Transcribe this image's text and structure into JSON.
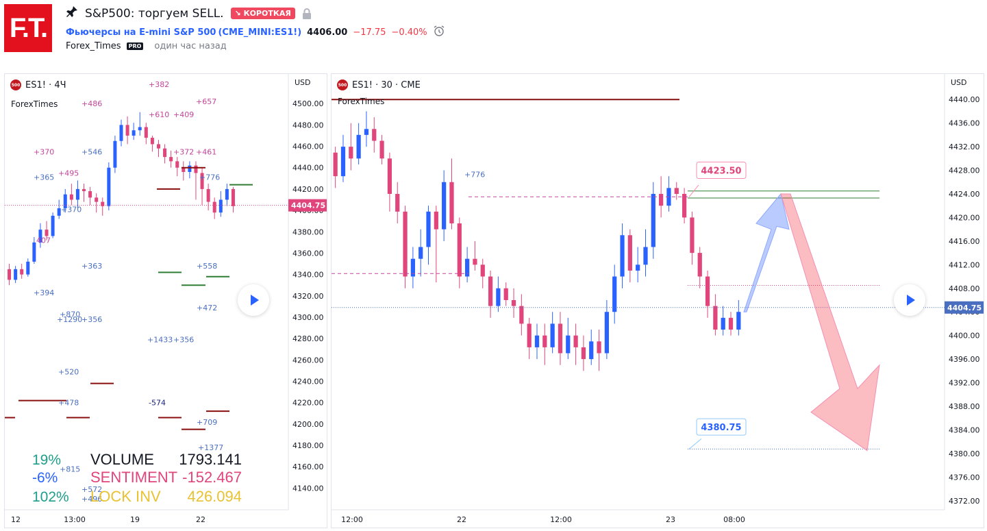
{
  "header": {
    "logo_text": "F.T.",
    "title": "S&P500: торгуем SELL.",
    "pin_icon": "pin-icon",
    "direction_badge": "↘ КОРОТКАЯ",
    "instrument": "Фьючерсы на E-mini S&P 500",
    "ticker": "(CME_MINI:ES1!)",
    "price": "4406.00",
    "change": "−17.75",
    "change_pct": "−0.40%",
    "author": "Forex_Times",
    "author_badge": "PRO",
    "published": "один час назад"
  },
  "colors": {
    "up": "#2962ff",
    "down": "#e0457b",
    "accent": "#2962ff",
    "short": "#f0485f"
  },
  "chart_data": [
    {
      "type": "candlestick",
      "symbol": "ES1! · 4Ч",
      "indicator_name": "ForexTimes",
      "currency": "USD",
      "last_price_label": "4404.75",
      "ylim": [
        4130,
        4520
      ],
      "y_ticks": [
        "4500.00",
        "4480.00",
        "4460.00",
        "4440.00",
        "4420.00",
        "4400.00",
        "4380.00",
        "4360.00",
        "4340.00",
        "4320.00",
        "4300.00",
        "4280.00",
        "4260.00",
        "4240.00",
        "4220.00",
        "4200.00",
        "4180.00",
        "4160.00",
        "4140.00"
      ],
      "x_ticks": [
        "12",
        "13:00",
        "19",
        "22"
      ],
      "candles": [
        [
          4345,
          4335,
          4350,
          4330
        ],
        [
          4335,
          4345,
          4348,
          4332
        ],
        [
          4345,
          4340,
          4350,
          4336
        ],
        [
          4340,
          4352,
          4355,
          4338
        ],
        [
          4352,
          4370,
          4375,
          4350
        ],
        [
          4370,
          4382,
          4388,
          4365
        ],
        [
          4382,
          4376,
          4390,
          4372
        ],
        [
          4376,
          4395,
          4398,
          4374
        ],
        [
          4395,
          4402,
          4410,
          4392
        ],
        [
          4402,
          4415,
          4420,
          4398
        ],
        [
          4415,
          4410,
          4425,
          4405
        ],
        [
          4410,
          4420,
          4428,
          4402
        ],
        [
          4420,
          4418,
          4425,
          4408
        ],
        [
          4418,
          4412,
          4422,
          4405
        ],
        [
          4412,
          4408,
          4416,
          4398
        ],
        [
          4408,
          4404,
          4412,
          4395
        ],
        [
          4404,
          4440,
          4445,
          4400
        ],
        [
          4440,
          4465,
          4470,
          4435
        ],
        [
          4465,
          4480,
          4485,
          4460
        ],
        [
          4480,
          4470,
          4488,
          4462
        ],
        [
          4470,
          4475,
          4482,
          4466
        ],
        [
          4475,
          4478,
          4492,
          4470
        ],
        [
          4478,
          4468,
          4482,
          4462
        ],
        [
          4468,
          4462,
          4470,
          4455
        ],
        [
          4462,
          4458,
          4466,
          4450
        ],
        [
          4458,
          4450,
          4462,
          4444
        ],
        [
          4450,
          4446,
          4456,
          4440
        ],
        [
          4446,
          4440,
          4450,
          4432
        ],
        [
          4440,
          4436,
          4446,
          4428
        ],
        [
          4436,
          4442,
          4446,
          4430
        ],
        [
          4442,
          4435,
          4446,
          4410
        ],
        [
          4435,
          4420,
          4440,
          4405
        ],
        [
          4420,
          4408,
          4425,
          4400
        ],
        [
          4408,
          4398,
          4412,
          4392
        ],
        [
          4398,
          4410,
          4418,
          4394
        ],
        [
          4410,
          4420,
          4425,
          4404
        ],
        [
          4420,
          4404,
          4422,
          4398
        ]
      ],
      "labels": [
        {
          "text": "+382",
          "x": 0,
          "y": 4518,
          "c": "#c2459a"
        },
        {
          "text": "+486",
          "x": 0,
          "y": 4500,
          "c": "#c2459a"
        },
        {
          "text": "+657",
          "x": 0,
          "y": 4502,
          "c": "#c2459a"
        },
        {
          "text": "+610",
          "x": 0,
          "y": 4490,
          "c": "#c2459a"
        },
        {
          "text": "+409",
          "x": 0,
          "y": 4490,
          "c": "#c2459a"
        },
        {
          "text": "+370",
          "x": 0,
          "y": 4455,
          "c": "#c2459a"
        },
        {
          "text": "+546",
          "x": 0,
          "y": 4455,
          "c": "#4a6fc0"
        },
        {
          "text": "+372",
          "x": 0,
          "y": 4455,
          "c": "#c2459a"
        },
        {
          "text": "+461",
          "x": 0,
          "y": 4455,
          "c": "#c2459a"
        },
        {
          "text": "+495",
          "x": 0,
          "y": 4435,
          "c": "#c2459a"
        },
        {
          "text": "+365",
          "x": 0,
          "y": 4431,
          "c": "#4a6fc0"
        },
        {
          "text": "+776",
          "x": 0,
          "y": 4431,
          "c": "#4a6fc0"
        },
        {
          "text": "+370",
          "x": 0,
          "y": 4401,
          "c": "#4a6fc0"
        },
        {
          "text": "407",
          "x": 0,
          "y": 4372,
          "c": "#c2459a"
        },
        {
          "text": "+363",
          "x": 0,
          "y": 4348,
          "c": "#4a6fc0"
        },
        {
          "text": "+558",
          "x": 0,
          "y": 4348,
          "c": "#4a6fc0"
        },
        {
          "text": "+394",
          "x": 0,
          "y": 4323,
          "c": "#4a6fc0"
        },
        {
          "text": "+472",
          "x": 0,
          "y": 4309,
          "c": "#4a6fc0"
        },
        {
          "text": "+870",
          "x": 0,
          "y": 4303,
          "c": "#4a6fc0"
        },
        {
          "text": "+1290",
          "x": 0,
          "y": 4298,
          "c": "#4a6fc0"
        },
        {
          "text": "+356",
          "x": 0,
          "y": 4298,
          "c": "#4a6fc0"
        },
        {
          "text": "+1433",
          "x": 0,
          "y": 4279,
          "c": "#4a6fc0"
        },
        {
          "text": "+356",
          "x": 0,
          "y": 4279,
          "c": "#4a6fc0"
        },
        {
          "text": "+520",
          "x": 0,
          "y": 4249,
          "c": "#4a6fc0"
        },
        {
          "text": "+478",
          "x": 0,
          "y": 4220,
          "c": "#4a6fc0"
        },
        {
          "text": "-574",
          "x": 0,
          "y": 4220,
          "c": "#1a237e"
        },
        {
          "text": "+709",
          "x": 0,
          "y": 4202,
          "c": "#4a6fc0"
        },
        {
          "text": "+1377",
          "x": 0,
          "y": 4178,
          "c": "#4a6fc0"
        },
        {
          "text": "+815",
          "x": 0,
          "y": 4158,
          "c": "#4a6fc0"
        },
        {
          "text": "+572",
          "x": 0,
          "y": 4139,
          "c": "#4a6fc0"
        },
        {
          "text": "+496",
          "x": 0,
          "y": 4130,
          "c": "#4a6fc0"
        }
      ],
      "stats": [
        {
          "pct": "19%",
          "label": "VOLUME",
          "value": "1793.141",
          "pc": "#1e9e8a",
          "lc": "#131722"
        },
        {
          "pct": "-6%",
          "label": "SENTIMENT",
          "value": "-152.467",
          "pc": "#2962ff",
          "lc": "#e0457b"
        },
        {
          "pct": "102%",
          "label": "LOCK INV",
          "value": "426.094",
          "pc": "#1e9e8a",
          "lc": "#e8c231"
        }
      ]
    },
    {
      "type": "candlestick",
      "symbol": "ES1! · 30 · CME",
      "indicator_name": "ForexTimes",
      "currency": "USD",
      "last_price_label": "4404.75",
      "ylim": [
        4370,
        4442
      ],
      "y_ticks": [
        "4440.00",
        "4436.00",
        "4432.00",
        "4428.00",
        "4424.00",
        "4420.00",
        "4416.00",
        "4412.00",
        "4408.00",
        "4404.00",
        "4400.00",
        "4396.00",
        "4392.00",
        "4388.00",
        "4384.00",
        "4380.00",
        "4376.00",
        "4372.00"
      ],
      "x_ticks": [
        "12:00",
        "22",
        "12:00",
        "23",
        "08:00"
      ],
      "level_labels": [
        {
          "text": "+776",
          "y": 4427.3
        }
      ],
      "resistance_label": "4423.50",
      "target_label": "4380.75",
      "candles": [
        [
          4431,
          4427,
          4432,
          4425
        ],
        [
          4427,
          4432,
          4434,
          4426
        ],
        [
          4432,
          4430,
          4436,
          4428
        ],
        [
          4430,
          4434,
          4436,
          4429
        ],
        [
          4434,
          4435,
          4438,
          4432
        ],
        [
          4435,
          4433,
          4437,
          4431
        ],
        [
          4433,
          4430,
          4434,
          4429
        ],
        [
          4430,
          4424,
          4431,
          4421
        ],
        [
          4424,
          4421,
          4426,
          4419
        ],
        [
          4421,
          4410,
          4422,
          4408
        ],
        [
          4410,
          4413,
          4415,
          4408
        ],
        [
          4413,
          4415,
          4418,
          4410
        ],
        [
          4415,
          4421,
          4422,
          4412
        ],
        [
          4421,
          4418,
          4422,
          4409
        ],
        [
          4418,
          4426,
          4428,
          4416
        ],
        [
          4426,
          4419,
          4430,
          4418
        ],
        [
          4419,
          4410,
          4420,
          4408
        ],
        [
          4410,
          4413,
          4415,
          4409
        ],
        [
          4413,
          4412,
          4416,
          4411
        ],
        [
          4412,
          4410,
          4413,
          4408
        ],
        [
          4410,
          4405,
          4411,
          4403
        ],
        [
          4405,
          4408,
          4410,
          4404
        ],
        [
          4408,
          4406,
          4409,
          4405
        ],
        [
          4406,
          4405,
          4408,
          4403
        ],
        [
          4405,
          4402,
          4407,
          4400
        ],
        [
          4402,
          4398,
          4403,
          4396
        ],
        [
          4398,
          4400,
          4402,
          4396
        ],
        [
          4400,
          4398,
          4402,
          4395
        ],
        [
          4398,
          4402,
          4404,
          4397
        ],
        [
          4402,
          4397,
          4404,
          4395
        ],
        [
          4397,
          4400,
          4403,
          4396
        ],
        [
          4400,
          4398,
          4402,
          4395
        ],
        [
          4398,
          4396,
          4400,
          4394
        ],
        [
          4396,
          4399,
          4401,
          4395
        ],
        [
          4399,
          4397,
          4401,
          4394
        ],
        [
          4397,
          4404,
          4406,
          4396
        ],
        [
          4404,
          4410,
          4412,
          4402
        ],
        [
          4410,
          4417,
          4419,
          4408
        ],
        [
          4417,
          4411,
          4418,
          4409
        ],
        [
          4411,
          4412,
          4415,
          4409
        ],
        [
          4412,
          4415,
          4418,
          4410
        ],
        [
          4415,
          4424,
          4426,
          4413
        ],
        [
          4424,
          4422,
          4427,
          4420
        ],
        [
          4422,
          4425,
          4427,
          4421
        ],
        [
          4425,
          4424,
          4426,
          4423
        ],
        [
          4424,
          4420,
          4425,
          4419
        ],
        [
          4420,
          4414,
          4421,
          4412
        ],
        [
          4414,
          4410,
          4415,
          4408
        ],
        [
          4410,
          4405,
          4411,
          4403
        ],
        [
          4405,
          4401,
          4407,
          4400
        ],
        [
          4401,
          4403,
          4405,
          4400
        ],
        [
          4403,
          4401,
          4404,
          4400
        ],
        [
          4401,
          4404,
          4406,
          4400
        ]
      ]
    }
  ]
}
